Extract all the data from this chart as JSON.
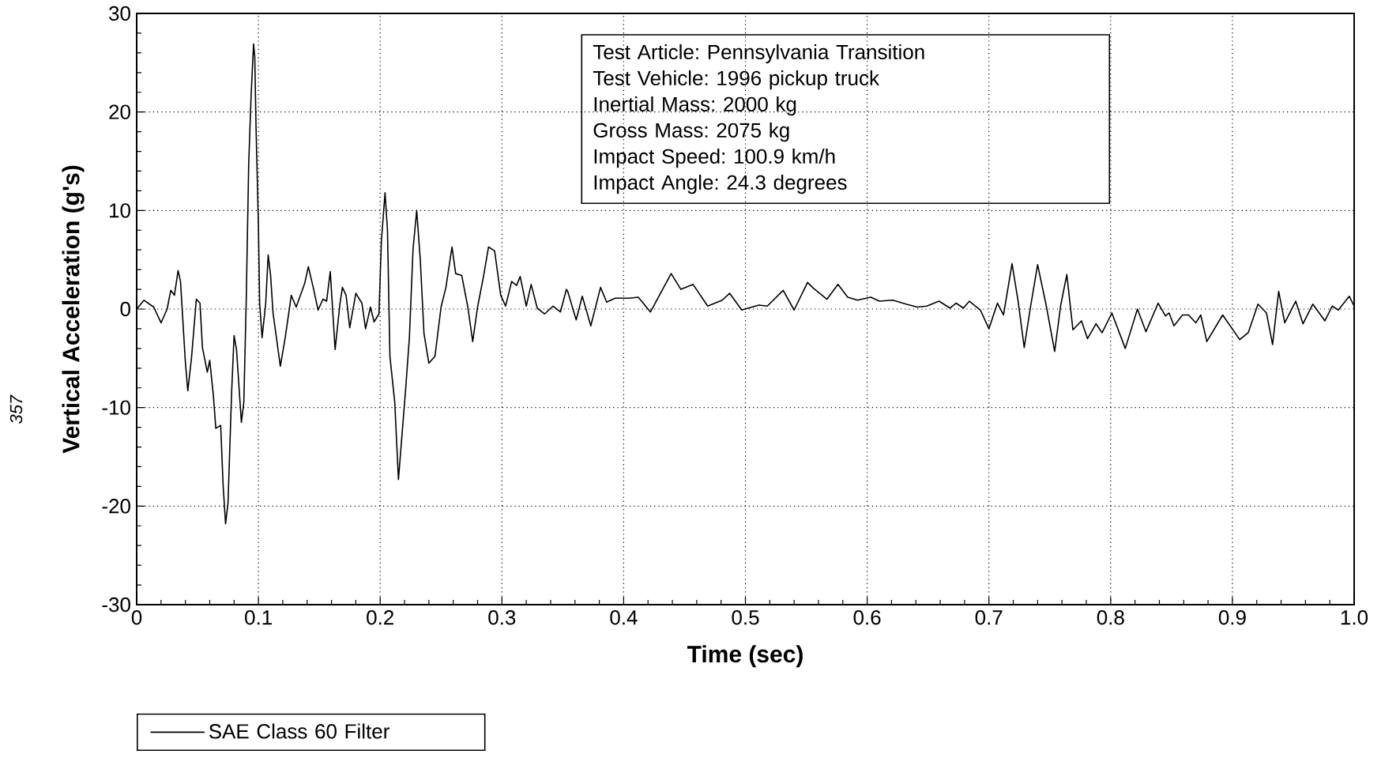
{
  "chart_data": {
    "type": "line",
    "xlabel": "Time (sec)",
    "ylabel": "Vertical Acceleration (g's)",
    "xlim": [
      0,
      1
    ],
    "ylim": [
      -30,
      30
    ],
    "xticks": [
      0,
      0.1,
      0.2,
      0.3,
      0.4,
      0.5,
      0.6,
      0.7,
      0.8,
      0.9,
      {
        "value": 1,
        "label": "1.0"
      }
    ],
    "yticks": [
      -30,
      -20,
      -10,
      0,
      10,
      20,
      30
    ],
    "grid": true,
    "legend": "bottom left",
    "x": [
      0,
      0.006,
      0.014,
      0.02,
      0.025,
      0.028,
      0.031,
      0.034,
      0.036,
      0.04,
      0.042,
      0.045,
      0.049,
      0.052,
      0.054,
      0.058,
      0.06,
      0.063,
      0.065,
      0.069,
      0.071,
      0.073,
      0.075,
      0.078,
      0.08,
      0.082,
      0.086,
      0.088,
      0.09,
      0.092,
      0.094,
      0.096,
      0.097,
      0.098,
      0.1,
      0.101,
      0.103,
      0.106,
      0.108,
      0.11,
      0.112,
      0.118,
      0.122,
      0.127,
      0.131,
      0.138,
      0.141,
      0.145,
      0.149,
      0.153,
      0.156,
      0.159,
      0.163,
      0.167,
      0.169,
      0.172,
      0.175,
      0.18,
      0.185,
      0.188,
      0.192,
      0.195,
      0.199,
      0.201,
      0.204,
      0.206,
      0.208,
      0.212,
      0.215,
      0.217,
      0.221,
      0.224,
      0.227,
      0.23,
      0.233,
      0.236,
      0.24,
      0.245,
      0.25,
      0.254,
      0.259,
      0.262,
      0.267,
      0.272,
      0.276,
      0.28,
      0.285,
      0.289,
      0.294,
      0.299,
      0.303,
      0.308,
      0.312,
      0.315,
      0.32,
      0.324,
      0.329,
      0.335,
      0.342,
      0.348,
      0.353,
      0.354,
      0.361,
      0.366,
      0.373,
      0.381,
      0.386,
      0.393,
      0.405,
      0.412,
      0.422,
      0.439,
      0.447,
      0.457,
      0.469,
      0.481,
      0.487,
      0.497,
      0.511,
      0.518,
      0.531,
      0.54,
      0.551,
      0.556,
      0.567,
      0.576,
      0.584,
      0.592,
      0.603,
      0.61,
      0.621,
      0.632,
      0.641,
      0.649,
      0.659,
      0.668,
      0.673,
      0.679,
      0.684,
      0.693,
      0.7,
      0.707,
      0.712,
      0.719,
      0.724,
      0.729,
      0.734,
      0.74,
      0.747,
      0.754,
      0.759,
      0.764,
      0.769,
      0.776,
      0.781,
      0.788,
      0.793,
      0.801,
      0.812,
      0.822,
      0.829,
      0.839,
      0.845,
      0.848,
      0.852,
      0.859,
      0.864,
      0.87,
      0.874,
      0.879,
      0.892,
      0.906,
      0.913,
      0.921,
      0.928,
      0.933,
      0.938,
      0.943,
      0.952,
      0.958,
      0.966,
      0.976,
      0.982,
      0.987,
      0.996,
      1.0
    ],
    "series": [
      {
        "name": "SAE Class 60 Filter",
        "color": "#000000",
        "values": [
          0,
          0.9,
          0.2,
          -1.4,
          0,
          1.9,
          1.4,
          3.9,
          2.8,
          -5.4,
          -8.3,
          -5.0,
          1.0,
          0.6,
          -3.9,
          -6.4,
          -5.2,
          -8.8,
          -12.1,
          -11.8,
          -17.9,
          -21.8,
          -19.7,
          -8.4,
          -2.7,
          -4.1,
          -11.5,
          -9.5,
          1.0,
          14.7,
          21.7,
          26.9,
          25.6,
          18.6,
          8.4,
          0.6,
          -2.9,
          0.6,
          5.5,
          3.4,
          -0.4,
          -5.8,
          -2.9,
          1.4,
          0.2,
          2.6,
          4.3,
          2.2,
          -0.1,
          1.0,
          0.8,
          3.8,
          -4.1,
          0.6,
          2.2,
          1.4,
          -1.9,
          1.6,
          0.6,
          -2.0,
          0.2,
          -1.3,
          -0.5,
          6.9,
          11.8,
          8.0,
          -4.8,
          -9.5,
          -17.3,
          -14.2,
          -8.0,
          -2.9,
          6.1,
          10.0,
          4.9,
          -2.5,
          -5.5,
          -4.8,
          0.2,
          2.2,
          6.3,
          3.6,
          3.4,
          0.2,
          -3.3,
          0.2,
          3.4,
          6.3,
          5.9,
          1.4,
          0.3,
          2.8,
          2.4,
          3.3,
          0.3,
          2.5,
          0.1,
          -0.5,
          0.3,
          -0.3,
          2.0,
          1.8,
          -1.1,
          1.3,
          -1.7,
          2.2,
          0.7,
          1.1,
          1.1,
          1.2,
          -0.3,
          3.6,
          2.0,
          2.5,
          0.3,
          0.9,
          1.6,
          -0.1,
          0.4,
          0.3,
          1.9,
          -0.1,
          2.7,
          2.1,
          1.0,
          2.5,
          1.2,
          0.9,
          1.2,
          0.8,
          0.9,
          0.5,
          0.2,
          0.3,
          0.8,
          0.1,
          0.6,
          0.1,
          0.8,
          -0.1,
          -2.0,
          0.6,
          -0.6,
          4.6,
          0.8,
          -3.9,
          0.1,
          4.5,
          0.4,
          -4.3,
          0.4,
          3.5,
          -2.1,
          -1.2,
          -3.0,
          -1.5,
          -2.4,
          -0.4,
          -4.0,
          0,
          -2.3,
          0.6,
          -0.7,
          -0.4,
          -1.7,
          -0.6,
          -0.6,
          -1.4,
          -0.6,
          -3.3,
          -0.6,
          -3.1,
          -2.4,
          0.5,
          -0.4,
          -3.6,
          1.8,
          -1.4,
          0.8,
          -1.5,
          0.5,
          -1.2,
          0.3,
          -0.1,
          1.3,
          0.3
        ]
      }
    ],
    "annotations": [
      "Test Article: Pennsylvania Transition",
      "Test Vehicle: 1996 pickup truck",
      "Inertial Mass: 2000 kg",
      "Gross Mass: 2075 kg",
      "Impact Speed: 100.9 km/h",
      "Impact Angle: 24.3 degrees",
      "357"
    ]
  }
}
